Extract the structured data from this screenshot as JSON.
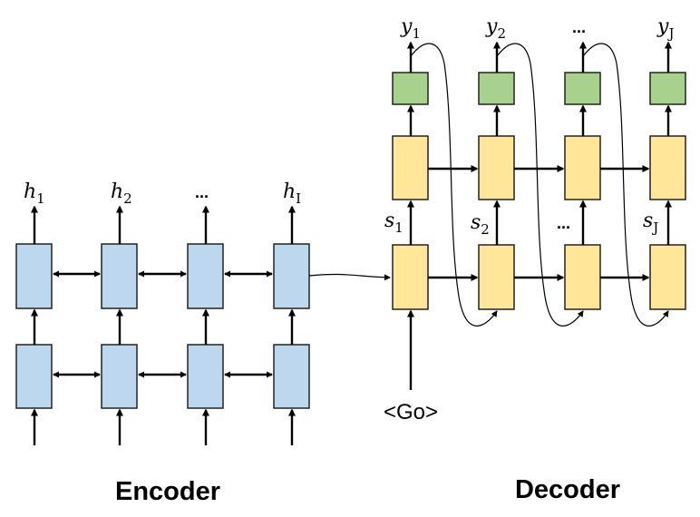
{
  "encoder": {
    "title": "Encoder",
    "outputs": [
      {
        "base": "h",
        "sub": "1"
      },
      {
        "base": "h",
        "sub": "2"
      },
      {
        "base": "",
        "sub": "",
        "ellipsis": "..."
      },
      {
        "base": "h",
        "sub": "I"
      }
    ],
    "cell_color": "#BDD7EE"
  },
  "decoder": {
    "title": "Decoder",
    "input_token": "<Go>",
    "outputs": [
      {
        "base": "y",
        "sub": "1"
      },
      {
        "base": "y",
        "sub": "2"
      },
      {
        "base": "",
        "sub": "",
        "ellipsis": "..."
      },
      {
        "base": "y",
        "sub": "J"
      }
    ],
    "states": [
      {
        "base": "s",
        "sub": "1"
      },
      {
        "base": "s",
        "sub": "2"
      },
      {
        "base": "",
        "sub": "",
        "ellipsis": "..."
      },
      {
        "base": "s",
        "sub": "J"
      }
    ],
    "cell_color": "#FFE699",
    "output_color": "#A9D18E"
  }
}
